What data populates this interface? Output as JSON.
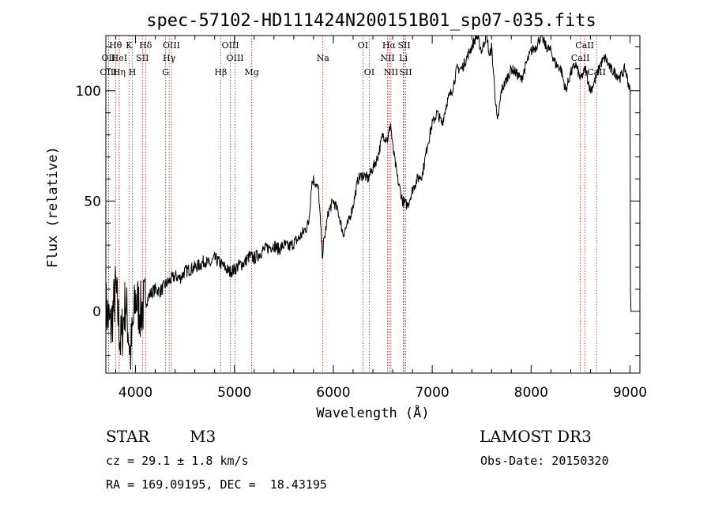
{
  "chart_data": {
    "type": "line",
    "title": "spec-57102-HD111424N200151B01_sp07-035.fits",
    "xlabel": "Wavelength (Å)",
    "ylabel": "Flux (relative)",
    "xlim": [
      3700,
      9100
    ],
    "ylim": [
      -28,
      125
    ],
    "xticks": [
      4000,
      5000,
      6000,
      7000,
      8000,
      9000
    ],
    "yticks": [
      0,
      50,
      100
    ],
    "series": [
      {
        "name": "flux",
        "x": [
          3700,
          3750,
          3800,
          3850,
          3900,
          3950,
          4000,
          4050,
          4100,
          4150,
          4200,
          4250,
          4300,
          4350,
          4400,
          4450,
          4500,
          4550,
          4600,
          4650,
          4700,
          4750,
          4800,
          4850,
          4900,
          4950,
          5000,
          5050,
          5100,
          5150,
          5200,
          5250,
          5300,
          5350,
          5400,
          5450,
          5500,
          5550,
          5600,
          5650,
          5700,
          5750,
          5780,
          5800,
          5850,
          5890,
          5900,
          5950,
          6000,
          6050,
          6100,
          6150,
          6200,
          6250,
          6300,
          6350,
          6400,
          6450,
          6500,
          6550,
          6580,
          6600,
          6650,
          6700,
          6750,
          6800,
          6850,
          6900,
          6950,
          7000,
          7050,
          7100,
          7150,
          7200,
          7250,
          7300,
          7350,
          7400,
          7450,
          7500,
          7550,
          7580,
          7600,
          7650,
          7660,
          7700,
          7750,
          7800,
          7850,
          7900,
          7950,
          8000,
          8050,
          8100,
          8150,
          8200,
          8250,
          8300,
          8350,
          8400,
          8450,
          8500,
          8550,
          8600,
          8650,
          8700,
          8750,
          8800,
          8850,
          8900,
          8950,
          9000,
          9005,
          9010
        ],
        "y": [
          2,
          -8,
          10,
          -15,
          5,
          -20,
          6,
          0,
          4,
          8,
          10,
          9,
          12,
          14,
          16,
          15,
          18,
          19,
          20,
          21,
          23,
          21,
          24,
          22,
          20,
          18,
          19,
          21,
          22,
          25,
          24,
          26,
          28,
          29,
          30,
          28,
          30,
          29,
          31,
          33,
          36,
          40,
          58,
          60,
          55,
          25,
          30,
          45,
          50,
          45,
          35,
          40,
          48,
          60,
          62,
          60,
          65,
          70,
          80,
          78,
          85,
          75,
          60,
          50,
          48,
          55,
          60,
          62,
          75,
          85,
          90,
          85,
          95,
          100,
          110,
          110,
          115,
          120,
          125,
          118,
          126,
          115,
          120,
          90,
          85,
          100,
          105,
          110,
          108,
          105,
          112,
          118,
          120,
          125,
          120,
          118,
          112,
          110,
          100,
          108,
          112,
          105,
          110,
          100,
          105,
          112,
          115,
          110,
          108,
          106,
          110,
          100,
          10,
          0
        ]
      }
    ],
    "spectral_lines": [
      {
        "label": "Hθ",
        "x": 3798,
        "row": 1
      },
      {
        "label": "OII",
        "x": 3727,
        "row": 2
      },
      {
        "label": "OIII",
        "x": 3727,
        "row": 3
      },
      {
        "label": "HeI",
        "x": 3835,
        "row": 2
      },
      {
        "label": "Hη",
        "x": 3835,
        "row": 3
      },
      {
        "label": "K",
        "x": 3934,
        "row": 1
      },
      {
        "label": "SII",
        "x": 4070,
        "row": 2
      },
      {
        "label": "H",
        "x": 3968,
        "row": 3
      },
      {
        "label": "Hδ",
        "x": 4102,
        "row": 1
      },
      {
        "label": "OIII",
        "x": 4363,
        "row": 1
      },
      {
        "label": "Hγ",
        "x": 4340,
        "row": 2
      },
      {
        "label": "G",
        "x": 4304,
        "row": 3
      },
      {
        "label": "OIII",
        "x": 4959,
        "row": 1
      },
      {
        "label": "OIII",
        "x": 5007,
        "row": 2
      },
      {
        "label": "Hβ",
        "x": 4861,
        "row": 3
      },
      {
        "label": "Mg",
        "x": 5175,
        "row": 3
      },
      {
        "label": "Na",
        "x": 5894,
        "row": 2
      },
      {
        "label": "OI",
        "x": 6300,
        "row": 1
      },
      {
        "label": "OI",
        "x": 6364,
        "row": 3
      },
      {
        "label": "Hα",
        "x": 6563,
        "row": 1
      },
      {
        "label": "SII",
        "x": 6716,
        "row": 1
      },
      {
        "label": "NII",
        "x": 6548,
        "row": 2
      },
      {
        "label": "Li",
        "x": 6708,
        "row": 2
      },
      {
        "label": "NII",
        "x": 6583,
        "row": 3
      },
      {
        "label": "SII",
        "x": 6731,
        "row": 3
      },
      {
        "label": "CaII",
        "x": 8542,
        "row": 1
      },
      {
        "label": "CaII",
        "x": 8498,
        "row": 2
      },
      {
        "label": "CaII",
        "x": 8662,
        "row": 3
      }
    ]
  },
  "info": {
    "object_type": "STAR",
    "spectral_class": "M3",
    "survey": "LAMOST DR3",
    "cz": "cz = 29.1 ± 1.8 km/s",
    "obs_date": "Obs-Date: 20150320",
    "coords": "RA = 169.09195, DEC =  18.43195"
  },
  "colors": {
    "axis": "#000000",
    "spectrum": "#000000",
    "line_marker": "#b02020"
  }
}
